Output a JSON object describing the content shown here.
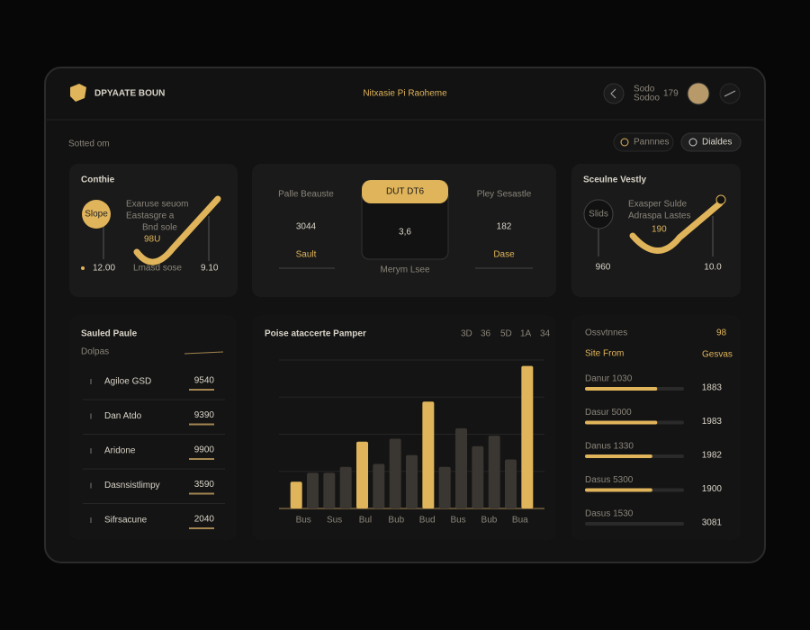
{
  "header": {
    "brand": "DPYAATE BOUN",
    "center": "Nitxasie Pi Raoheme",
    "user_top": "Sodo",
    "user_bottom": "Sodoo",
    "count": "179"
  },
  "toolbar": {
    "title": "Sotted om",
    "buttons": [
      "Pannnes",
      "Dialdes"
    ]
  },
  "card_left": {
    "title": "Conthie",
    "badge": "Slope",
    "lines": [
      "Exaruse seuom",
      "Eastasgre a",
      "Bnd sole",
      "98U"
    ],
    "left_value": "12.00",
    "mid_label": "Lmasd sose",
    "right_value": "9.10"
  },
  "card_metrics": {
    "left": {
      "label": "Palle Beauste",
      "value": "3044",
      "sub": "Sault"
    },
    "center": {
      "tab": "DUT DT6",
      "value": "3,6",
      "sub": "Merym Lsee"
    },
    "right": {
      "label": "Pley Sesastle",
      "value": "182",
      "sub": "Dase"
    }
  },
  "card_right": {
    "title": "Sceulne Vestly",
    "badge": "Slids",
    "lines": [
      "Exasper Sulde",
      "Adraspa Lastes",
      "190"
    ],
    "left_value": "960",
    "right_value": "10.0"
  },
  "list_panel": {
    "title": "Sauled Paule",
    "subtitle": "Dolpas",
    "rows": [
      {
        "name": "Agiloe GSD",
        "value": "9540"
      },
      {
        "name": "Dan Atdo",
        "value": "9390"
      },
      {
        "name": "Aridone",
        "value": "9900"
      },
      {
        "name": "Dasnsistlimpy",
        "value": "3590"
      },
      {
        "name": "Sifrsacune",
        "value": "2040"
      }
    ]
  },
  "chart_panel": {
    "title": "Poise ataccerte Pamper",
    "legend": [
      "3D",
      "36",
      "5D",
      "1A",
      "34"
    ],
    "ylim": [
      0,
      100
    ],
    "bars": [
      {
        "value": 18,
        "color": "#e0b45a"
      },
      {
        "value": 24,
        "color": "#3a3631"
      },
      {
        "value": 24,
        "color": "#3a3631"
      },
      {
        "value": 28,
        "color": "#3a3631"
      },
      {
        "value": 45,
        "color": "#e0b45a"
      },
      {
        "value": 30,
        "color": "#3a3631"
      },
      {
        "value": 47,
        "color": "#3a3631"
      },
      {
        "value": 36,
        "color": "#3a3631"
      },
      {
        "value": 72,
        "color": "#e0b45a"
      },
      {
        "value": 28,
        "color": "#3a3631"
      },
      {
        "value": 54,
        "color": "#3a3631"
      },
      {
        "value": 42,
        "color": "#3a3631"
      },
      {
        "value": 49,
        "color": "#3a3631"
      },
      {
        "value": 33,
        "color": "#3a3631"
      },
      {
        "value": 96,
        "color": "#e0b45a"
      }
    ],
    "x_labels": [
      "Bus",
      "Sus",
      "Bul",
      "Bub",
      "Bud",
      "Bus",
      "Bub",
      "Bua"
    ]
  },
  "right_panel": {
    "title": "Ossvtnnes",
    "badge": "98",
    "heading": "Site From",
    "action": "Gesvas",
    "rows": [
      {
        "label": "Danur 1030",
        "value": "1883",
        "progress": 73
      },
      {
        "label": "Dasur 5000",
        "value": "1983",
        "progress": 73
      },
      {
        "label": "Danus 1330",
        "value": "1982",
        "progress": 68
      },
      {
        "label": "Dasus 5300",
        "value": "1900",
        "progress": 68
      },
      {
        "label": "Dasus 1530",
        "value": "3081",
        "progress": 0
      }
    ]
  }
}
